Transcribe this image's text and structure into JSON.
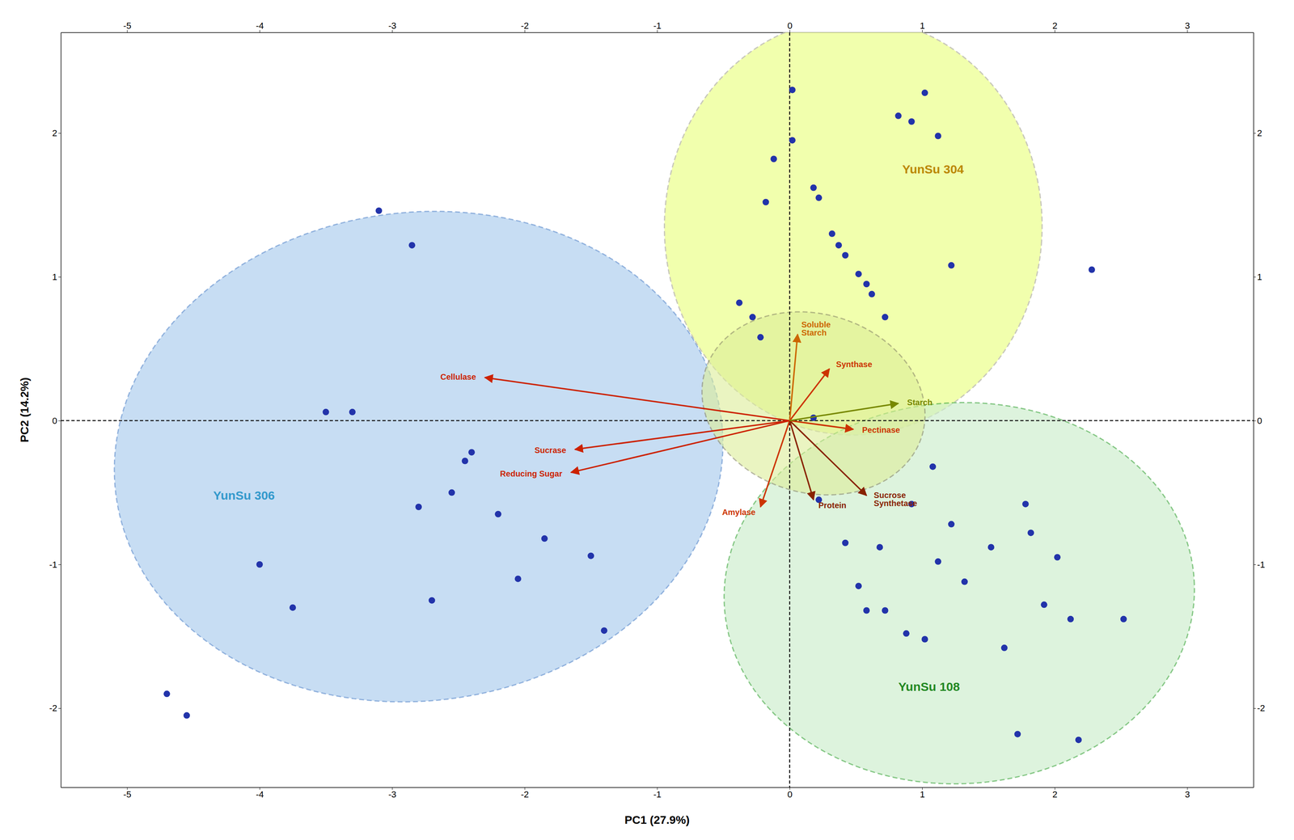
{
  "chart_data": {
    "type": "scatter",
    "xlabel": "PC1 (27.9%)",
    "ylabel": "PC2 (14.2%)",
    "xlim": [
      -5.5,
      3.5
    ],
    "ylim": [
      -2.55,
      2.7
    ],
    "xticks": [
      -5,
      -4,
      -3,
      -2,
      -1,
      0,
      1,
      2,
      3
    ],
    "yticks": [
      -2,
      -1,
      0,
      1,
      2
    ],
    "grid": false,
    "hline": 0,
    "vline": 0,
    "series": [
      {
        "color": "#2233AA",
        "x": [
          -4.7,
          -4.55,
          -4.0,
          -3.75,
          -3.5,
          -3.3,
          -3.1,
          -2.85,
          -2.8,
          -2.7,
          -2.55,
          -2.45,
          -2.4,
          -2.2,
          -2.05,
          -1.85,
          -1.5,
          -1.4
        ],
        "y": [
          -1.9,
          -2.05,
          -1.0,
          -1.3,
          0.06,
          0.06,
          1.46,
          1.22,
          -0.6,
          -1.25,
          -0.5,
          -0.28,
          -0.22,
          -0.65,
          -1.1,
          -0.82,
          -0.94,
          -1.46
        ]
      },
      {
        "color": "#2233AA",
        "x": [
          -0.38,
          -0.28,
          -0.22,
          -0.18,
          -0.12,
          0.02,
          0.02,
          0.18,
          0.22,
          0.32,
          0.37,
          0.42,
          0.52,
          0.58,
          0.62,
          0.72,
          0.82,
          0.92,
          1.02,
          1.12,
          1.22,
          2.28
        ],
        "y": [
          0.82,
          0.72,
          0.58,
          1.52,
          1.82,
          2.3,
          1.95,
          1.62,
          1.55,
          1.3,
          1.22,
          1.15,
          1.02,
          0.95,
          0.88,
          0.72,
          2.12,
          2.08,
          2.28,
          1.98,
          1.08,
          1.05
        ]
      },
      {
        "color": "#2233AA",
        "x": [
          0.18,
          0.22,
          0.42,
          0.52,
          0.58,
          0.68,
          0.72,
          0.88,
          0.92,
          1.02,
          1.08,
          1.12,
          1.22,
          1.32,
          1.52,
          1.62,
          1.72,
          1.78,
          1.82,
          1.92,
          2.02,
          2.12,
          2.18,
          2.52
        ],
        "y": [
          0.02,
          -0.55,
          -0.85,
          -1.15,
          -1.32,
          -0.88,
          -1.32,
          -1.48,
          -0.58,
          -1.52,
          -0.32,
          -0.98,
          -0.72,
          -1.12,
          -0.88,
          -1.58,
          -2.18,
          -0.58,
          -0.78,
          -1.28,
          -0.95,
          -1.38,
          -2.22,
          -1.38
        ]
      }
    ],
    "ellipses": [
      {
        "cx": -2.8,
        "cy": -0.25,
        "width": 4.6,
        "height": 3.4,
        "angle": 5,
        "color": "#AACCEE",
        "edge_color": "#5588CC"
      },
      {
        "cx": 0.48,
        "cy": 1.35,
        "width": 2.85,
        "height": 2.9,
        "angle": -5,
        "color": "#EEFF99",
        "edge_color": "#BBBBAA"
      },
      {
        "cx": 1.28,
        "cy": -1.2,
        "width": 3.55,
        "height": 2.65,
        "angle": 2,
        "color": "#CCEECC",
        "edge_color": "#44AA44"
      },
      {
        "cx": 0.18,
        "cy": 0.12,
        "width": 1.7,
        "height": 1.25,
        "angle": -12,
        "color": "#DDEE99",
        "edge_color": "#888866"
      }
    ],
    "arrows": [
      {
        "label": "Cellulase",
        "x": -2.3,
        "y": 0.3,
        "color": "#CC2200"
      },
      {
        "label": "Sucrase",
        "x": -1.62,
        "y": -0.2,
        "color": "#CC2200"
      },
      {
        "label": "Reducing Sugar",
        "x": -1.65,
        "y": -0.36,
        "color": "#CC2200"
      },
      {
        "label": "Amylase",
        "x": -0.22,
        "y": -0.6,
        "color": "#CC3300"
      },
      {
        "label": "Protein",
        "x": 0.18,
        "y": -0.55,
        "color": "#882200"
      },
      {
        "label": "Sucrose\nSynthetase",
        "x": 0.58,
        "y": -0.52,
        "color": "#882200"
      },
      {
        "label": "Pectinase",
        "x": 0.48,
        "y": -0.06,
        "color": "#CC3300"
      },
      {
        "label": "Synthase",
        "x": 0.3,
        "y": 0.36,
        "color": "#CC3300"
      },
      {
        "label": "Soluble\nStarch",
        "x": 0.06,
        "y": 0.6,
        "color": "#CC6600"
      },
      {
        "label": "Starch",
        "x": 0.82,
        "y": 0.12,
        "color": "#778800"
      }
    ],
    "annotations": [
      {
        "text": "YunSu 306",
        "x": -4.35,
        "y": -0.55,
        "color": "#3399CC"
      },
      {
        "text": "YunSu 304",
        "x": 0.85,
        "y": 1.72,
        "color": "#BB8800"
      },
      {
        "text": "YunSu 108",
        "x": 0.82,
        "y": -1.88,
        "color": "#228822"
      }
    ]
  }
}
